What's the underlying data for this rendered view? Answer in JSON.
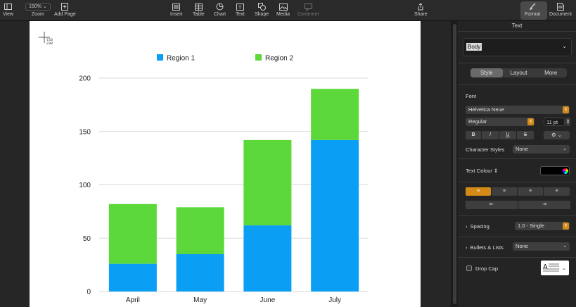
{
  "toolbar": {
    "view": "View",
    "zoom_value": "150%",
    "zoom": "Zoom",
    "add_page": "Add Page",
    "insert": "Insert",
    "table": "Table",
    "chart": "Chart",
    "text": "Text",
    "shape": "Shape",
    "media": "Media",
    "comment": "Comment",
    "share": "Share",
    "format": "Format",
    "document": "Document"
  },
  "cursor_readout": {
    "x": "733",
    "y": "238"
  },
  "inspector": {
    "title": "Text",
    "paragraph_style": "Body",
    "tabs": [
      "Style",
      "Layout",
      "More"
    ],
    "font_label": "Font",
    "font_family": "Helvetica Neue",
    "font_typeface": "Regular",
    "font_size": "11 pt",
    "format_buttons": [
      "B",
      "I",
      "U",
      "S"
    ],
    "char_styles_label": "Character Styles",
    "char_styles_value": "None",
    "text_colour_label": "Text Colour",
    "spacing_label": "Spacing",
    "spacing_value": "1.0 - Single",
    "bullets_label": "Bullets & Lists",
    "bullets_value": "None",
    "dropcap_label": "Drop Cap",
    "accent_color": "#d38a17"
  },
  "chart_data": {
    "type": "bar",
    "stacked": true,
    "categories": [
      "April",
      "May",
      "June",
      "July"
    ],
    "series": [
      {
        "name": "Region 1",
        "color": "#0a9ff5",
        "values": [
          26,
          35,
          62,
          142
        ]
      },
      {
        "name": "Region 2",
        "color": "#5dd83a",
        "values": [
          56,
          44,
          80,
          48
        ]
      }
    ],
    "ylim": [
      0,
      200
    ],
    "yticks": [
      0,
      50,
      100,
      150,
      200
    ],
    "grid": true,
    "legend": "top"
  }
}
